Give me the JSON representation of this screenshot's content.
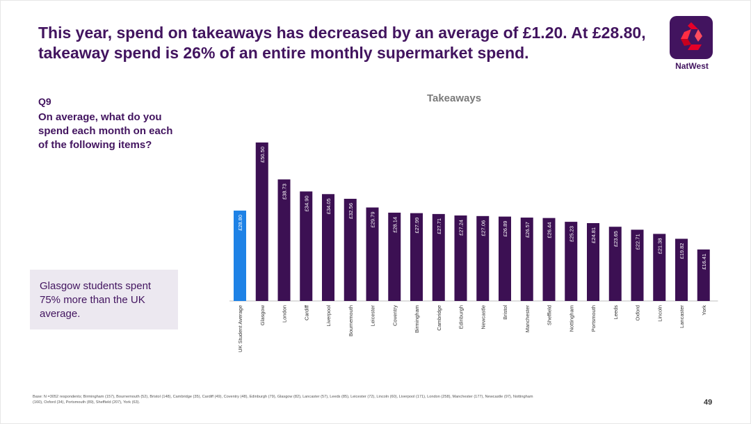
{
  "slide": {
    "title": "This year, spend on takeaways has decreased by an average of £1.20. At £28.80, takeaway spend is 26% of an entire monthly supermarket spend.",
    "brand": "NatWest",
    "question_label": "Q9",
    "question_text": "On average, what do you spend each month on each of the following items?",
    "callout": "Glasgow students spent 75% more than the UK average.",
    "base_note": "Base: N =3052 respondents; Birmingham (157), Bournemouth (52), Bristol (148), Cambridge (35), Cardiff (49), Coventry (48), Edinburgh (79), Glasgow (82), Lancaster (57), Leeds (85), Leicester (72), Lincoln (60), Liverpool (171), London (258), Manchester (177), Newcastle (97), Nottingham (160), Oxford (34), Portsmouth (89), Sheffield (207), York (63).",
    "page_number": "49"
  },
  "colors": {
    "brand_purple": "#42145f",
    "bar_purple": "#3c1053",
    "highlight_blue": "#1e82e6"
  },
  "chart_data": {
    "type": "bar",
    "title": "Takeaways",
    "categories": [
      "UK Student Average",
      "Glasgow",
      "London",
      "Cardiff",
      "Liverpool",
      "Bournemouth",
      "Leicester",
      "Coventry",
      "Birmingham",
      "Cambridge",
      "Edinburgh",
      "Newcastle",
      "Bristol",
      "Manchester",
      "Sheffield",
      "Nottingham",
      "Portsmouth",
      "Leeds",
      "Oxford",
      "Lincoln",
      "Lancaster",
      "York"
    ],
    "values": [
      28.8,
      50.5,
      38.73,
      34.9,
      34.05,
      32.56,
      29.79,
      28.14,
      27.99,
      27.71,
      27.24,
      27.06,
      26.89,
      26.57,
      26.44,
      25.23,
      24.81,
      23.65,
      22.71,
      21.38,
      19.82,
      16.41
    ],
    "labels": [
      "£28.80",
      "£50.50",
      "£38.73",
      "£34.90",
      "£34.05",
      "£32.56",
      "£29.79",
      "£28.14",
      "£27.99",
      "£27.71",
      "£27.24",
      "£27.06",
      "£26.89",
      "£26.57",
      "£26.44",
      "£25.23",
      "£24.81",
      "£23.65",
      "£22.71",
      "£21.38",
      "£19.82",
      "£16.41"
    ],
    "highlight_index": 0,
    "ylim": [
      0,
      50.5
    ],
    "grid": false,
    "legend": "none"
  }
}
